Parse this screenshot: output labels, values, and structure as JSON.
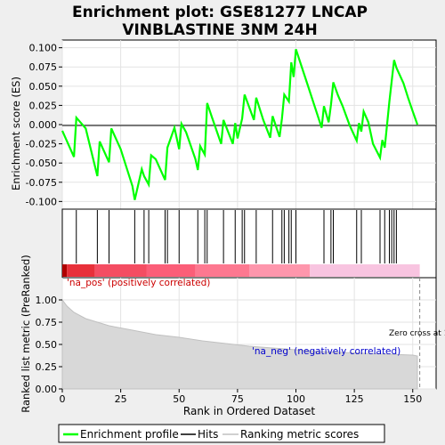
{
  "title_line1": "Enrichment plot: GSE81277 LNCAP",
  "title_line2": "VINBLASTINE 3NM 24H",
  "colors": {
    "background": "#efefef",
    "enrichment": "#00ff00",
    "hits": "#000000",
    "metric": "#c0c0c0",
    "pos_label": "#cc0000",
    "neg_label": "#0000cc"
  },
  "labels": {
    "pos": "'na_pos' (positively correlated)",
    "neg": "'na_neg' (negatively correlated)",
    "zero_cross": "Zero cross at 153"
  },
  "legend": {
    "items": [
      {
        "label": "Enrichment profile",
        "color": "#00ff00"
      },
      {
        "label": "Hits",
        "color": "#000000"
      },
      {
        "label": "Ranking metric scores",
        "color": "#c0c0c0"
      }
    ]
  },
  "chart_data": [
    {
      "type": "line",
      "name": "enrichment-score",
      "ylabel": "Enrichment score (ES)",
      "xlim": [
        0,
        160
      ],
      "ylim": [
        -0.11,
        0.11
      ],
      "yticks": [
        -0.1,
        -0.075,
        -0.05,
        -0.025,
        0.0,
        0.025,
        0.05,
        0.075,
        0.1
      ],
      "ytick_labels": [
        "-0.100",
        "-0.075",
        "-0.050",
        "-0.025",
        "0.000",
        "0.025",
        "0.050",
        "0.075",
        "0.100"
      ],
      "grid": true,
      "x": [
        0,
        5,
        6,
        10,
        15,
        16,
        20,
        21,
        25,
        30,
        31,
        34,
        35,
        37,
        38,
        40,
        44,
        45,
        48,
        50,
        51,
        53,
        57,
        58,
        59,
        61,
        62,
        64,
        68,
        69,
        73,
        74,
        75,
        77,
        78,
        82,
        83,
        86,
        89,
        90,
        93,
        94,
        95,
        97,
        98,
        99,
        100,
        105,
        111,
        112,
        114,
        115,
        116,
        118,
        120,
        123,
        126,
        127,
        128,
        129,
        131,
        133,
        136,
        137,
        138,
        140,
        142,
        143,
        146,
        148,
        150,
        152
      ],
      "y": [
        -0.008,
        -0.042,
        0.009,
        -0.005,
        -0.067,
        -0.022,
        -0.049,
        -0.005,
        -0.032,
        -0.08,
        -0.098,
        -0.058,
        -0.067,
        -0.078,
        -0.04,
        -0.045,
        -0.072,
        -0.03,
        -0.004,
        -0.032,
        0.001,
        -0.01,
        -0.045,
        -0.059,
        -0.028,
        -0.039,
        0.028,
        0.01,
        -0.025,
        0.006,
        -0.025,
        0.002,
        -0.018,
        0.008,
        0.039,
        0.006,
        0.035,
        0.006,
        -0.017,
        0.011,
        -0.016,
        0.008,
        0.039,
        0.03,
        0.081,
        0.062,
        0.098,
        0.052,
        -0.004,
        0.024,
        0.003,
        0.026,
        0.055,
        0.038,
        0.024,
        -0.001,
        -0.021,
        0.002,
        -0.009,
        0.017,
        0.003,
        -0.025,
        -0.043,
        -0.02,
        -0.03,
        0.03,
        0.084,
        0.074,
        0.054,
        0.035,
        0.017,
        0.0
      ]
    },
    {
      "type": "scatter",
      "name": "hits",
      "hit_positions": [
        6,
        15,
        20,
        31,
        35,
        37,
        44,
        45,
        50,
        58,
        61,
        62,
        69,
        74,
        77,
        78,
        83,
        90,
        94,
        95,
        97,
        98,
        100,
        112,
        115,
        116,
        126,
        128,
        136,
        138,
        140,
        141,
        142,
        143
      ]
    },
    {
      "type": "area",
      "name": "ranked-list-metric",
      "xlabel": "Rank in Ordered Dataset",
      "ylabel": "Ranked list metric (PreRanked)",
      "xlim": [
        0,
        160
      ],
      "ylim": [
        0.0,
        1.25
      ],
      "xticks": [
        0,
        25,
        50,
        75,
        100,
        125,
        150
      ],
      "yticks": [
        0.0,
        0.25,
        0.5,
        0.75,
        1.0
      ],
      "ytick_labels": [
        "0.00",
        "0.25",
        "0.50",
        "0.75",
        "1.00"
      ],
      "grid": true,
      "x": [
        0,
        2,
        5,
        10,
        20,
        30,
        40,
        50,
        60,
        70,
        80,
        90,
        100,
        110,
        120,
        130,
        140,
        150,
        152
      ],
      "y": [
        1.0,
        0.93,
        0.86,
        0.79,
        0.71,
        0.66,
        0.61,
        0.58,
        0.54,
        0.51,
        0.48,
        0.46,
        0.44,
        0.42,
        0.41,
        0.4,
        0.39,
        0.38,
        0.37
      ],
      "zero_cross": 153
    }
  ]
}
